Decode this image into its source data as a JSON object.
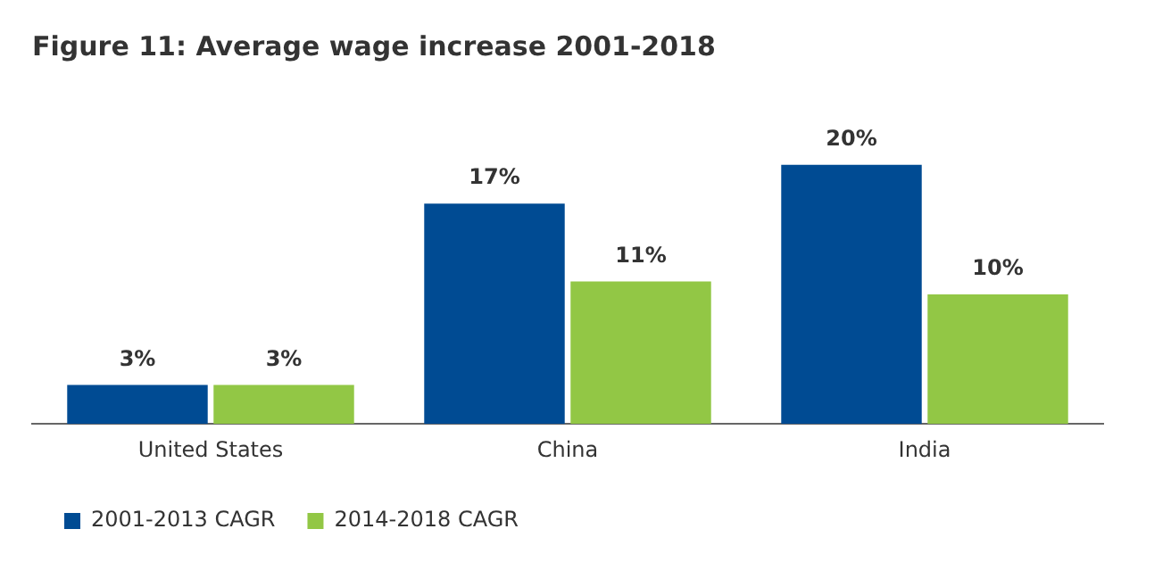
{
  "chart_data": {
    "type": "bar",
    "title": "Figure 11: Average wage increase 2001-2018",
    "categories": [
      "United States",
      "China",
      "India"
    ],
    "series": [
      {
        "name": "2001-2013 CAGR",
        "color": "#004b93",
        "values": [
          3,
          17,
          20
        ],
        "value_labels": [
          "3%",
          "17%",
          "20%"
        ]
      },
      {
        "name": "2014-2018 CAGR",
        "color": "#92c745",
        "values": [
          3,
          11,
          10
        ],
        "value_labels": [
          "3%",
          "11%",
          "10%"
        ]
      }
    ],
    "legend": "bottom left",
    "grid": false
  }
}
